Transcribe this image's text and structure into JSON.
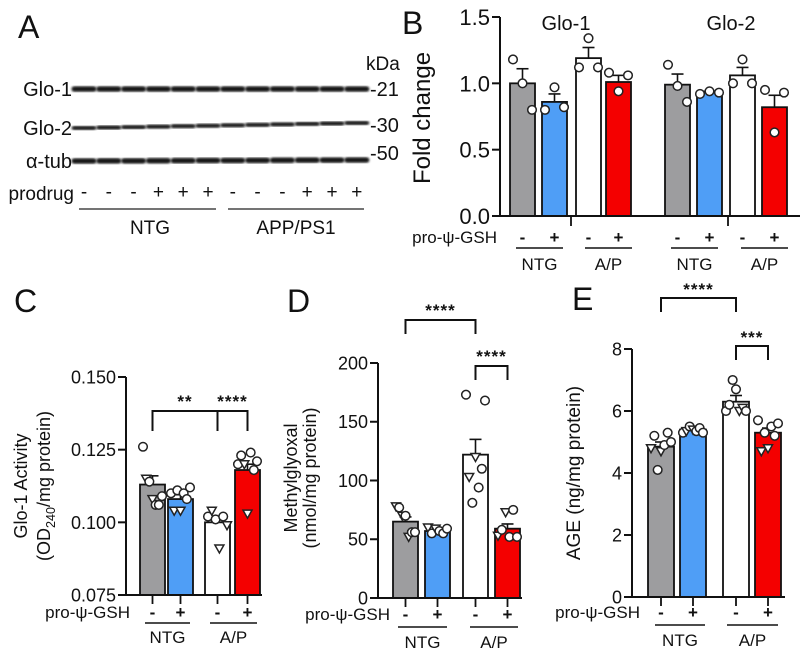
{
  "panel_letters": {
    "A": "A",
    "B": "B",
    "C": "C",
    "D": "D",
    "E": "E"
  },
  "western_blot": {
    "bands": [
      "Glo-1",
      "Glo-2",
      "α-tub"
    ],
    "kda_label": "kDa",
    "markers": [
      "-21",
      "-30",
      "-50"
    ],
    "prodrug_label": "prodrug",
    "prodrug": [
      "-",
      "-",
      "-",
      "+",
      "+",
      "+",
      "-",
      "-",
      "-",
      "+",
      "+",
      "+"
    ],
    "groups": [
      "NTG",
      "APP/PS1"
    ]
  },
  "colors": {
    "NTG_minus": "#9d9d9f",
    "NTG_plus": "#4f9ef6",
    "AP_minus": "#ffffff",
    "AP_plus": "#f40000"
  },
  "chart_data": [
    {
      "panel": "B",
      "type": "bar",
      "ylabel": "Fold change",
      "ylim": [
        0,
        1.5
      ],
      "yticks": [
        "0.0",
        "0.5",
        "1.0",
        "1.5"
      ],
      "ytick_values": [
        0,
        0.5,
        1,
        1.5
      ],
      "treatment_label": "pro-ψ-GSH",
      "subgroups": [
        {
          "title": "Glo-1",
          "genotypes": [
            "NTG",
            "A/P"
          ]
        },
        {
          "title": "Glo-2",
          "genotypes": [
            "NTG",
            "A/P"
          ]
        }
      ],
      "bars": [
        {
          "group": "Glo-1",
          "genotype": "NTG",
          "treatment": "-",
          "color_key": "NTG_minus",
          "mean": 1.0,
          "sem": 0.11,
          "points": [
            [
              "o",
              1.18
            ],
            [
              "o",
              1.0
            ],
            [
              "o",
              0.8
            ]
          ]
        },
        {
          "group": "Glo-1",
          "genotype": "NTG",
          "treatment": "+",
          "color_key": "NTG_plus",
          "mean": 0.86,
          "sem": 0.06,
          "points": [
            [
              "o",
              0.8
            ],
            [
              "o",
              0.97
            ],
            [
              "o",
              0.82
            ]
          ]
        },
        {
          "group": "Glo-1",
          "genotype": "A/P",
          "treatment": "-",
          "color_key": "AP_minus",
          "mean": 1.19,
          "sem": 0.08,
          "points": [
            [
              "o",
              1.12
            ],
            [
              "o",
              1.34
            ],
            [
              "o",
              1.12
            ]
          ]
        },
        {
          "group": "Glo-1",
          "genotype": "A/P",
          "treatment": "+",
          "color_key": "AP_plus",
          "mean": 1.01,
          "sem": 0.05,
          "points": [
            [
              "o",
              1.08
            ],
            [
              "o",
              0.94
            ],
            [
              "o",
              1.06
            ]
          ]
        },
        {
          "group": "Glo-2",
          "genotype": "NTG",
          "treatment": "-",
          "color_key": "NTG_minus",
          "mean": 0.99,
          "sem": 0.08,
          "points": [
            [
              "o",
              1.14
            ],
            [
              "o",
              0.98
            ],
            [
              "o",
              0.86
            ]
          ]
        },
        {
          "group": "Glo-2",
          "genotype": "NTG",
          "treatment": "+",
          "color_key": "NTG_plus",
          "mean": 0.93,
          "sem": 0.01,
          "points": [
            [
              "o",
              0.92
            ],
            [
              "o",
              0.94
            ],
            [
              "o",
              0.93
            ]
          ]
        },
        {
          "group": "Glo-2",
          "genotype": "A/P",
          "treatment": "-",
          "color_key": "AP_minus",
          "mean": 1.06,
          "sem": 0.06,
          "points": [
            [
              "o",
              1.0
            ],
            [
              "o",
              1.18
            ],
            [
              "o",
              1.0
            ]
          ]
        },
        {
          "group": "Glo-2",
          "genotype": "A/P",
          "treatment": "+",
          "color_key": "AP_plus",
          "mean": 0.82,
          "sem": 0.09,
          "points": [
            [
              "o",
              0.95
            ],
            [
              "o",
              0.63
            ],
            [
              "o",
              0.93
            ]
          ]
        }
      ],
      "significance": []
    },
    {
      "panel": "C",
      "type": "bar",
      "ylabel": "Glo-1 Activity",
      "ylabel2": {
        "pre": "(OD",
        "sub": "240",
        "post": "/mg protein)"
      },
      "ylim": [
        0.075,
        0.15
      ],
      "yticks": [
        "0.075",
        "0.100",
        "0.125",
        "0.150"
      ],
      "ytick_values": [
        0.075,
        0.1,
        0.125,
        0.15
      ],
      "treatment_label": "pro-ψ-GSH",
      "genotypes": [
        "NTG",
        "A/P"
      ],
      "bars": [
        {
          "genotype": "NTG",
          "treatment": "-",
          "color_key": "NTG_minus",
          "mean": 0.113,
          "sem": 0.003,
          "points": [
            [
              "o",
              0.126
            ],
            [
              "v",
              0.115
            ],
            [
              "o",
              0.114
            ],
            [
              "v",
              0.108
            ],
            [
              "o",
              0.106
            ],
            [
              "o",
              0.106
            ],
            [
              "o",
              0.109
            ]
          ]
        },
        {
          "genotype": "NTG",
          "treatment": "+",
          "color_key": "NTG_plus",
          "mean": 0.108,
          "sem": 0.0015,
          "points": [
            [
              "o",
              0.11
            ],
            [
              "v",
              0.104
            ],
            [
              "o",
              0.111
            ],
            [
              "v",
              0.104
            ],
            [
              "o",
              0.11
            ],
            [
              "o",
              0.108
            ],
            [
              "o",
              0.112
            ]
          ]
        },
        {
          "genotype": "A/P",
          "treatment": "-",
          "color_key": "AP_minus",
          "mean": 0.1,
          "sem": 0.002,
          "points": [
            [
              "o",
              0.102
            ],
            [
              "v",
              0.104
            ],
            [
              "o",
              0.101
            ],
            [
              "v",
              0.091
            ],
            [
              "o",
              0.102
            ],
            [
              "v",
              0.099
            ]
          ]
        },
        {
          "genotype": "A/P",
          "treatment": "+",
          "color_key": "AP_plus",
          "mean": 0.118,
          "sem": 0.002,
          "points": [
            [
              "o",
              0.12
            ],
            [
              "o",
              0.123
            ],
            [
              "v",
              0.12
            ],
            [
              "v",
              0.103
            ],
            [
              "o",
              0.124
            ],
            [
              "o",
              0.118
            ],
            [
              "o",
              0.121
            ]
          ]
        }
      ],
      "significance": [
        {
          "from": 0,
          "to": 2,
          "label": "**"
        },
        {
          "from": 2,
          "to": 3,
          "label": "****"
        }
      ]
    },
    {
      "panel": "D",
      "type": "bar",
      "ylabel": "Methylglyoxal",
      "ylabel2": {
        "pre": "(nmol/mg protein)"
      },
      "ylim": [
        0,
        200
      ],
      "yticks": [
        "0",
        "50",
        "100",
        "150",
        "200"
      ],
      "ytick_values": [
        0,
        50,
        100,
        150,
        200
      ],
      "treatment_label": "pro-ψ-GSH",
      "genotypes": [
        "NTG",
        "A/P"
      ],
      "bars": [
        {
          "genotype": "NTG",
          "treatment": "-",
          "color_key": "NTG_minus",
          "mean": 65,
          "sem": 4,
          "points": [
            [
              "v",
              78
            ],
            [
              "o",
              77
            ],
            [
              "v",
              70
            ],
            [
              "o",
              70
            ],
            [
              "v",
              52
            ],
            [
              "o",
              56
            ],
            [
              "o",
              56
            ]
          ]
        },
        {
          "genotype": "NTG",
          "treatment": "+",
          "color_key": "NTG_plus",
          "mean": 57,
          "sem": 1.5,
          "points": [
            [
              "v",
              60
            ],
            [
              "o",
              55
            ],
            [
              "v",
              59
            ],
            [
              "o",
              57
            ],
            [
              "o",
              55
            ],
            [
              "o",
              59
            ]
          ]
        },
        {
          "genotype": "A/P",
          "treatment": "-",
          "color_key": "AP_minus",
          "mean": 122,
          "sem": 13,
          "points": [
            [
              "o",
              173
            ],
            [
              "v",
              103
            ],
            [
              "o",
              81
            ],
            [
              "v",
              120
            ],
            [
              "o",
              94
            ],
            [
              "o",
              110
            ],
            [
              "o",
              168
            ]
          ]
        },
        {
          "genotype": "A/P",
          "treatment": "+",
          "color_key": "AP_plus",
          "mean": 59,
          "sem": 4,
          "points": [
            [
              "v",
              53
            ],
            [
              "o",
              58
            ],
            [
              "v",
              73
            ],
            [
              "o",
              52
            ],
            [
              "o",
              75
            ],
            [
              "o",
              52
            ]
          ]
        }
      ],
      "significance": [
        {
          "from": 0,
          "to": 2,
          "label": "****"
        },
        {
          "from": 2,
          "to": 3,
          "label": "****"
        }
      ]
    },
    {
      "panel": "E",
      "type": "bar",
      "ylabel": "AGE (ng/mg protein)",
      "ylim": [
        0,
        8
      ],
      "yticks": [
        "0",
        "2",
        "4",
        "6",
        "8"
      ],
      "ytick_values": [
        0,
        2,
        4,
        6,
        8
      ],
      "treatment_label": "pro-ψ-GSH",
      "genotypes": [
        "NTG",
        "A/P"
      ],
      "bars": [
        {
          "genotype": "NTG",
          "treatment": "-",
          "color_key": "NTG_minus",
          "mean": 4.85,
          "sem": 0.15,
          "points": [
            [
              "v",
              4.8
            ],
            [
              "o",
              5.2
            ],
            [
              "o",
              4.1
            ],
            [
              "v",
              4.7
            ],
            [
              "o",
              4.9
            ],
            [
              "o",
              5.3
            ],
            [
              "o",
              5.0
            ]
          ]
        },
        {
          "genotype": "NTG",
          "treatment": "+",
          "color_key": "NTG_plus",
          "mean": 5.4,
          "sem": 0.05,
          "points": [
            [
              "o",
              5.3
            ],
            [
              "v",
              5.35
            ],
            [
              "o",
              5.5
            ],
            [
              "v",
              5.4
            ],
            [
              "o",
              5.35
            ],
            [
              "o",
              5.45
            ],
            [
              "o",
              5.3
            ]
          ]
        },
        {
          "genotype": "A/P",
          "treatment": "-",
          "color_key": "AP_minus",
          "mean": 6.3,
          "sem": 0.2,
          "points": [
            [
              "o",
              6.0
            ],
            [
              "o",
              6.2
            ],
            [
              "o",
              7.0
            ],
            [
              "o",
              6.7
            ],
            [
              "v",
              6.0
            ],
            [
              "v",
              6.1
            ],
            [
              "o",
              6.0
            ]
          ]
        },
        {
          "genotype": "A/P",
          "treatment": "+",
          "color_key": "AP_plus",
          "mean": 5.3,
          "sem": 0.15,
          "points": [
            [
              "o",
              5.7
            ],
            [
              "v",
              4.7
            ],
            [
              "o",
              5.3
            ],
            [
              "v",
              4.8
            ],
            [
              "o",
              5.5
            ],
            [
              "o",
              5.2
            ],
            [
              "o",
              5.6
            ]
          ]
        }
      ],
      "significance": [
        {
          "from": 0,
          "to": 2,
          "label": "****"
        },
        {
          "from": 2,
          "to": 3,
          "label": "***"
        }
      ]
    }
  ]
}
